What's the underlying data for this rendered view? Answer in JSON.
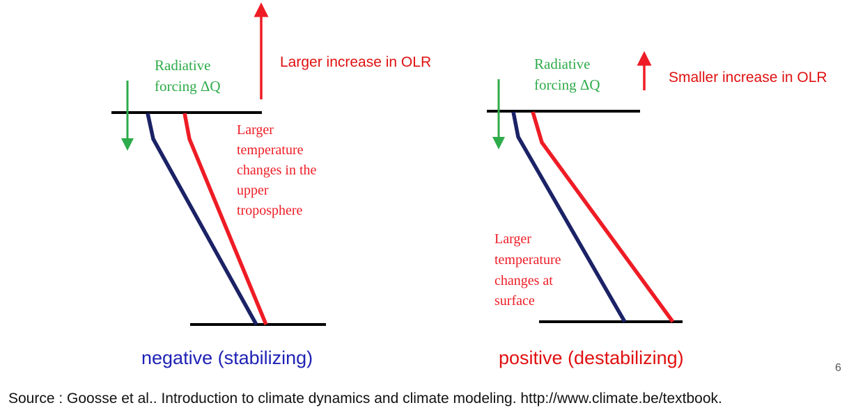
{
  "colors": {
    "green": "#2eab4a",
    "red": "#ee1c25",
    "navy": "#1b2266",
    "black": "#000000",
    "blue_caption": "#1f22b4"
  },
  "left_panel": {
    "forcing_label": [
      "Radiative",
      "forcing ΔQ"
    ],
    "olr_label": "Larger increase in OLR",
    "temp_label": [
      "Larger",
      "temperature",
      "changes in the",
      "upper",
      "troposphere"
    ],
    "caption": "negative (stabilizing)"
  },
  "right_panel": {
    "forcing_label": [
      "Radiative",
      "forcing ΔQ"
    ],
    "olr_label": "Smaller increase in OLR",
    "temp_label": [
      "Larger",
      "temperature",
      "changes at",
      "surface"
    ],
    "caption": "positive (destabilizing)"
  },
  "page_number": "6",
  "source": "Source : Goosse et al.. Introduction to climate dynamics and climate modeling. http://www.climate.be/textbook."
}
